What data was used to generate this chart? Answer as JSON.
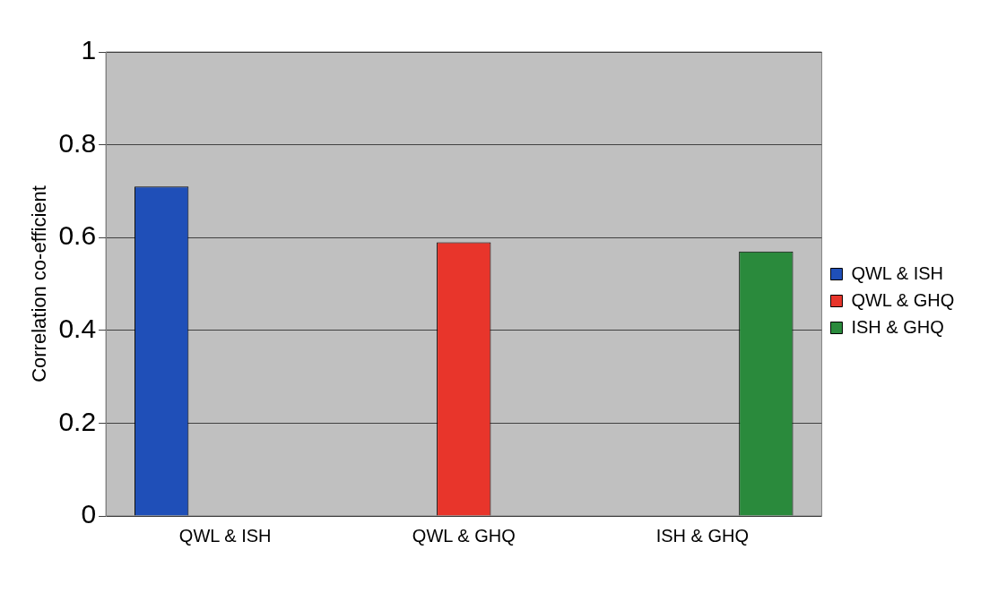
{
  "chart_data": {
    "type": "bar",
    "ylabel": "Correlation co-efficient",
    "categories": [
      "QWL & ISH",
      "QWL & GHQ",
      "ISH & GHQ"
    ],
    "series": [
      {
        "name": "QWL & ISH",
        "color": "#1f4fb8",
        "values": [
          0.71,
          null,
          null
        ]
      },
      {
        "name": "QWL & GHQ",
        "color": "#e8352b",
        "values": [
          null,
          0.59,
          null
        ]
      },
      {
        "name": "ISH & GHQ",
        "color": "#2a8a3c",
        "values": [
          null,
          null,
          0.57
        ]
      }
    ],
    "ylim": [
      0,
      1
    ],
    "yticks": [
      0,
      0.2,
      0.4,
      0.6,
      0.8,
      1
    ],
    "grid": "y",
    "legend": "right"
  }
}
